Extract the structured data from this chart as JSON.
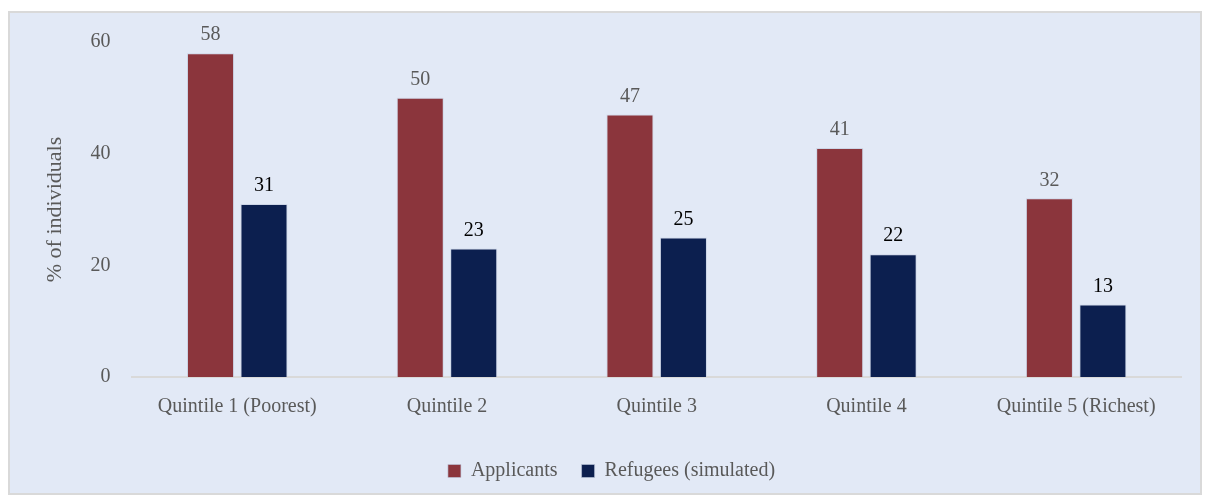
{
  "chart_data": {
    "type": "bar",
    "ylabel": "% of individuals",
    "categories": [
      "Quintile 1 (Poorest)",
      "Quintile 2",
      "Quintile 3",
      "Quintile 4",
      "Quintile 5 (Richest)"
    ],
    "series": [
      {
        "name": "Applicants",
        "color": "#8b353c",
        "values": [
          58,
          50,
          47,
          41,
          32
        ]
      },
      {
        "name": "Refugees (simulated)",
        "color": "#0c1f4f",
        "values": [
          31,
          23,
          25,
          22,
          13
        ]
      }
    ],
    "ylim": [
      0,
      60
    ],
    "yticks": [
      0,
      20,
      40,
      60
    ],
    "legend": "bottom",
    "data_labels": true
  }
}
